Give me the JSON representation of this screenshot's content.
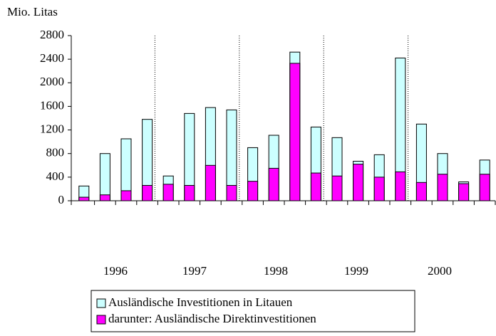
{
  "chart_data": {
    "type": "bar",
    "y_axis_label": "Mio. Litas",
    "categories": [
      null,
      null,
      null,
      null,
      null,
      null,
      null,
      null,
      null,
      null,
      null,
      null,
      null,
      null,
      null,
      null,
      null,
      null,
      null,
      null
    ],
    "year_labels": [
      "1996",
      "1997",
      "1998",
      "1999",
      "2000"
    ],
    "series": [
      {
        "name": "Ausländische Investitionen in Litauen",
        "color": "#ccffff",
        "values": [
          250,
          800,
          1050,
          1380,
          420,
          1480,
          1580,
          1540,
          900,
          1110,
          2520,
          1250,
          1070,
          670,
          780,
          2420,
          1300,
          800,
          320,
          690
        ]
      },
      {
        "name": "darunter: Ausländische Direktinvestitionen",
        "color": "#ff00ff",
        "values": [
          60,
          100,
          170,
          260,
          280,
          260,
          600,
          260,
          330,
          550,
          2330,
          470,
          420,
          620,
          400,
          490,
          310,
          450,
          290,
          450
        ]
      }
    ],
    "ylim": [
      0,
      2800
    ],
    "yticks": [
      0,
      400,
      800,
      1200,
      1600,
      2000,
      2400,
      2800
    ]
  }
}
